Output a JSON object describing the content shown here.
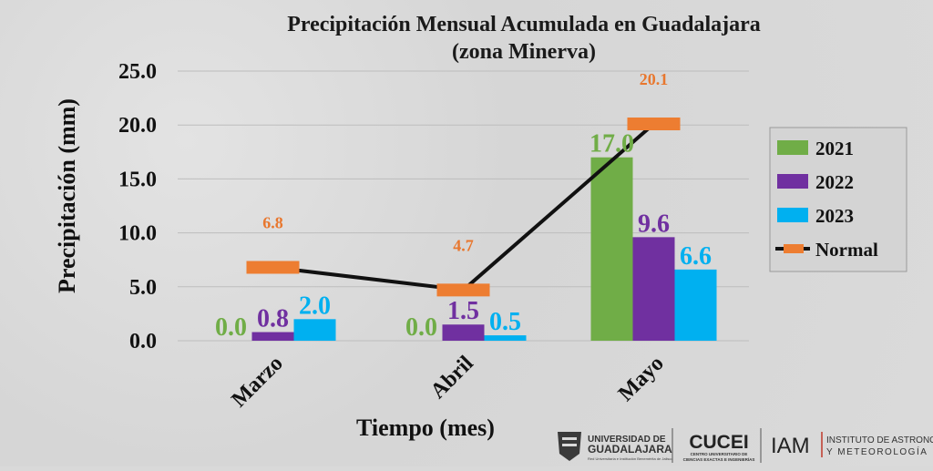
{
  "chart_data": {
    "type": "bar",
    "title": "Precipitación Mensual Acumulada en Guadalajara",
    "subtitle": "(zona Minerva)",
    "xlabel": "Tiempo (mes)",
    "ylabel": "Precipitación (mm)",
    "ylim": [
      0,
      25
    ],
    "yticks": [
      "0.0",
      "5.0",
      "10.0",
      "15.0",
      "20.0",
      "25.0"
    ],
    "categories": [
      "Marzo",
      "Abril",
      "Mayo"
    ],
    "series": [
      {
        "name": "2021",
        "values": [
          0.0,
          0.0,
          17.0
        ],
        "labels": [
          "0.0",
          "0.0",
          "17.0"
        ],
        "color": "#70ad47"
      },
      {
        "name": "2022",
        "values": [
          0.8,
          1.5,
          9.6
        ],
        "labels": [
          "0.8",
          "1.5",
          "9.6"
        ],
        "color": "#7030a0"
      },
      {
        "name": "2023",
        "values": [
          2.0,
          0.5,
          6.6
        ],
        "labels": [
          "2.0",
          "0.5",
          "6.6"
        ],
        "color": "#00b0f0"
      }
    ],
    "normal": {
      "name": "Normal",
      "values": [
        6.8,
        4.7,
        20.1
      ],
      "labels": [
        "6.8",
        "4.7",
        "20.1"
      ],
      "color": "#ed7d31",
      "line_color": "#111111"
    },
    "grid": true,
    "legend_position": "right"
  },
  "logos": {
    "udg_line1": "UNIVERSIDAD DE",
    "udg_line2": "GUADALAJARA",
    "udg_line3": "Red Universitaria e Institución Benemérita de Jalisco",
    "cucei": "CUCEI",
    "cucei_sub1": "CENTRO UNIVERSITARIO DE",
    "cucei_sub2": "CIENCIAS EXACTAS E INGENIERÍAS",
    "iam": "IAM",
    "iam_line1": "INSTITUTO DE ASTRONOMÍA",
    "iam_line2": "Y METEOROLOGÍA"
  }
}
